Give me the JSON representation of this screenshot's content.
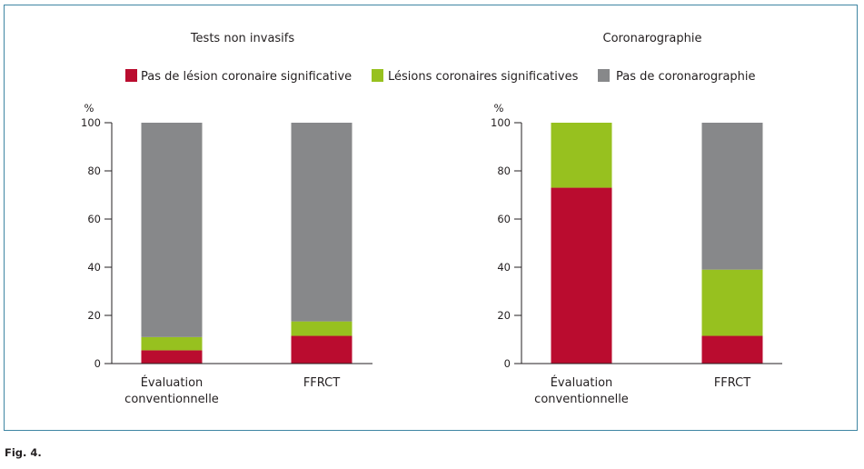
{
  "figure": {
    "label": "Fig. 4."
  },
  "colors": {
    "pas_de_lesion": "#ba0c2f",
    "lesions": "#97c11f",
    "pas_de_coro": "#87888a",
    "axis": "#231f20",
    "frame": "#3f86a3"
  },
  "legend": [
    {
      "name": "Pas de lésion coronaire significative",
      "color": "#ba0c2f"
    },
    {
      "name": "Lésions coronaires significatives",
      "color": "#97c11f"
    },
    {
      "name": "Pas de coronarographie",
      "color": "#87888a"
    }
  ],
  "chart_data": [
    {
      "type": "bar",
      "stacked": true,
      "title": "Tests non invasifs",
      "ylabel": "%",
      "ylim": [
        0,
        100
      ],
      "yticks": [
        "0",
        "20",
        "40",
        "60",
        "80",
        "100"
      ],
      "categories": [
        [
          "Évaluation",
          "conventionnelle"
        ],
        [
          "FFRCT"
        ]
      ],
      "series": [
        {
          "name": "Pas de lésion coronaire significative",
          "values": [
            5.5,
            11.5
          ]
        },
        {
          "name": "Lésions coronaires significatives",
          "values": [
            5.5,
            6.0
          ]
        },
        {
          "name": "Pas de coronarographie",
          "values": [
            89.0,
            82.5
          ]
        }
      ]
    },
    {
      "type": "bar",
      "stacked": true,
      "title": "Coronarographie",
      "ylabel": "%",
      "ylim": [
        0,
        100
      ],
      "yticks": [
        "0",
        "20",
        "40",
        "60",
        "80",
        "100"
      ],
      "categories": [
        [
          "Évaluation",
          "conventionnelle"
        ],
        [
          "FFRCT"
        ]
      ],
      "series": [
        {
          "name": "Pas de lésion coronaire significative",
          "values": [
            73.0,
            11.5
          ]
        },
        {
          "name": "Lésions coronaires significatives",
          "values": [
            27.0,
            27.5
          ]
        },
        {
          "name": "Pas de coronarographie",
          "values": [
            0,
            61.0
          ]
        }
      ]
    }
  ]
}
